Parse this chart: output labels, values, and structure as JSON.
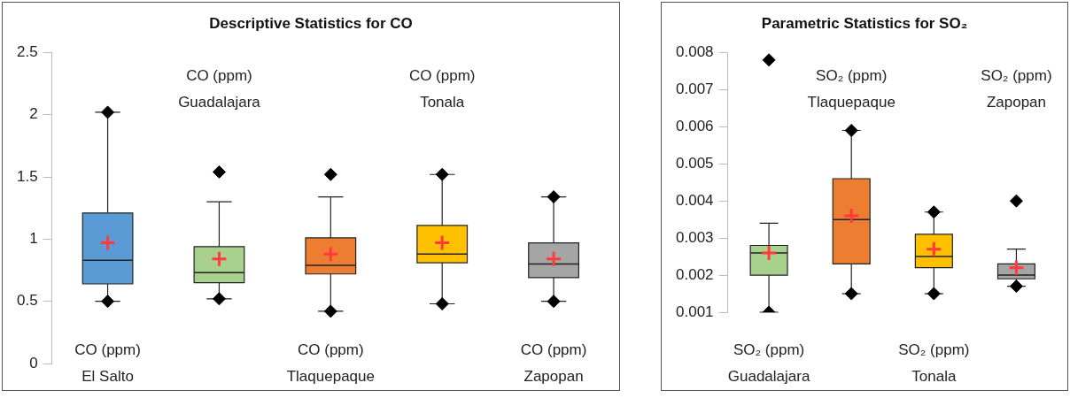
{
  "chart_data": [
    {
      "type": "box",
      "title": "Descriptive Statistics for CO",
      "categories": [
        "CO (ppm)\nEl Salto",
        "CO (ppm)\nGuadalajara",
        "CO (ppm)\nTlaquepaque",
        "CO (ppm)\nTonala",
        "CO (ppm)\nZapopan"
      ],
      "colors": [
        "#5b9bd5",
        "#a9d18e",
        "#ed7d31",
        "#ffc000",
        "#a5a5a5"
      ],
      "boxes": [
        {
          "low": 0.5,
          "q1": 0.64,
          "median": 0.83,
          "q3": 1.21,
          "high": 2.02,
          "mean": 0.97,
          "outliers": [
            0.5,
            2.02
          ]
        },
        {
          "low": 0.52,
          "q1": 0.65,
          "median": 0.73,
          "q3": 0.94,
          "high": 1.3,
          "mean": 0.84,
          "outliers": [
            0.52,
            1.54
          ]
        },
        {
          "low": 0.42,
          "q1": 0.72,
          "median": 0.79,
          "q3": 1.01,
          "high": 1.34,
          "mean": 0.88,
          "outliers": [
            0.42,
            1.52
          ]
        },
        {
          "low": 0.48,
          "q1": 0.81,
          "median": 0.88,
          "q3": 1.11,
          "high": 1.52,
          "mean": 0.97,
          "outliers": [
            0.48,
            1.52
          ]
        },
        {
          "low": 0.5,
          "q1": 0.69,
          "median": 0.8,
          "q3": 0.97,
          "high": 1.34,
          "mean": 0.84,
          "outliers": [
            0.5,
            1.34
          ]
        }
      ],
      "ylim": [
        0,
        2.5
      ],
      "yticks": [
        0,
        0.5,
        1,
        1.5,
        2,
        2.5
      ],
      "grid": false
    },
    {
      "type": "box",
      "title": "Parametric Statistics for SO₂",
      "categories": [
        "SO₂ (ppm)\nGuadalajara",
        "SO₂ (ppm)\nTlaquepaque",
        "SO₂ (ppm)\nTonala",
        "SO₂ (ppm)\nZapopan"
      ],
      "colors": [
        "#a9d18e",
        "#ed7d31",
        "#ffc000",
        "#a5a5a5"
      ],
      "boxes": [
        {
          "low": 0.001,
          "q1": 0.002,
          "median": 0.0026,
          "q3": 0.0028,
          "high": 0.0034,
          "mean": 0.0026,
          "outliers": [
            0.001,
            0.0078
          ]
        },
        {
          "low": 0.0015,
          "q1": 0.0023,
          "median": 0.0035,
          "q3": 0.0046,
          "high": 0.0059,
          "mean": 0.0036,
          "outliers": [
            0.0015,
            0.0059
          ]
        },
        {
          "low": 0.0015,
          "q1": 0.0022,
          "median": 0.0025,
          "q3": 0.0031,
          "high": 0.0037,
          "mean": 0.0027,
          "outliers": [
            0.0015,
            0.0037
          ]
        },
        {
          "low": 0.0017,
          "q1": 0.0019,
          "median": 0.002,
          "q3": 0.0023,
          "high": 0.0027,
          "mean": 0.0022,
          "outliers": [
            0.0017,
            0.004
          ]
        }
      ],
      "ylim": [
        0.001,
        0.008
      ],
      "yticks": [
        0.001,
        0.002,
        0.003,
        0.004,
        0.005,
        0.006,
        0.007,
        0.008
      ],
      "grid": false
    }
  ]
}
